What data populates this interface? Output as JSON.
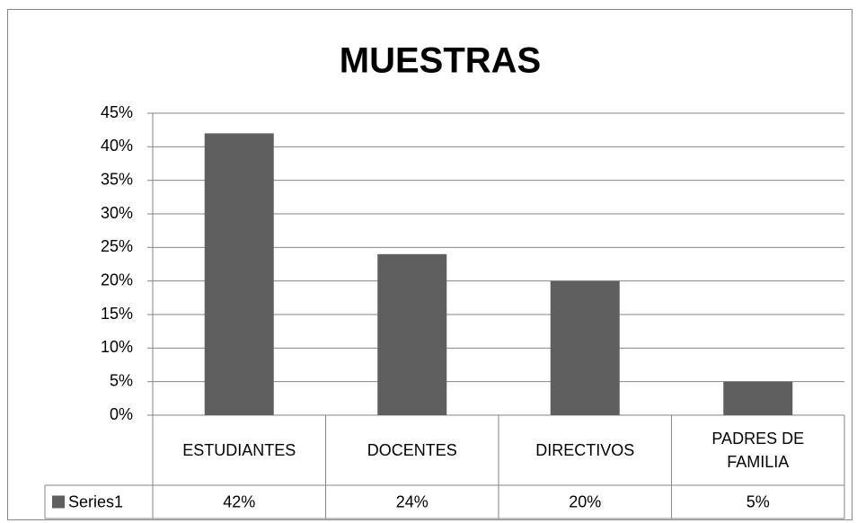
{
  "chart_data": {
    "type": "bar",
    "title": "MUESTRAS",
    "categories": [
      "ESTUDIANTES",
      "DOCENTES",
      "DIRECTIVOS",
      "PADRES DE FAMILIA"
    ],
    "series": [
      {
        "name": "Series1",
        "color": "#5f5f5f",
        "values": [
          42,
          24,
          20,
          5
        ],
        "value_labels": [
          "42%",
          "24%",
          "20%",
          "5%"
        ]
      }
    ],
    "ylim": [
      0,
      45
    ],
    "yticks": [
      {
        "value": 0,
        "label": "0%"
      },
      {
        "value": 5,
        "label": "5%"
      },
      {
        "value": 10,
        "label": "10%"
      },
      {
        "value": 15,
        "label": "15%"
      },
      {
        "value": 20,
        "label": "20%"
      },
      {
        "value": 25,
        "label": "25%"
      },
      {
        "value": 30,
        "label": "30%"
      },
      {
        "value": 35,
        "label": "35%"
      },
      {
        "value": 40,
        "label": "40%"
      },
      {
        "value": 45,
        "label": "45%"
      }
    ],
    "grid": true
  }
}
